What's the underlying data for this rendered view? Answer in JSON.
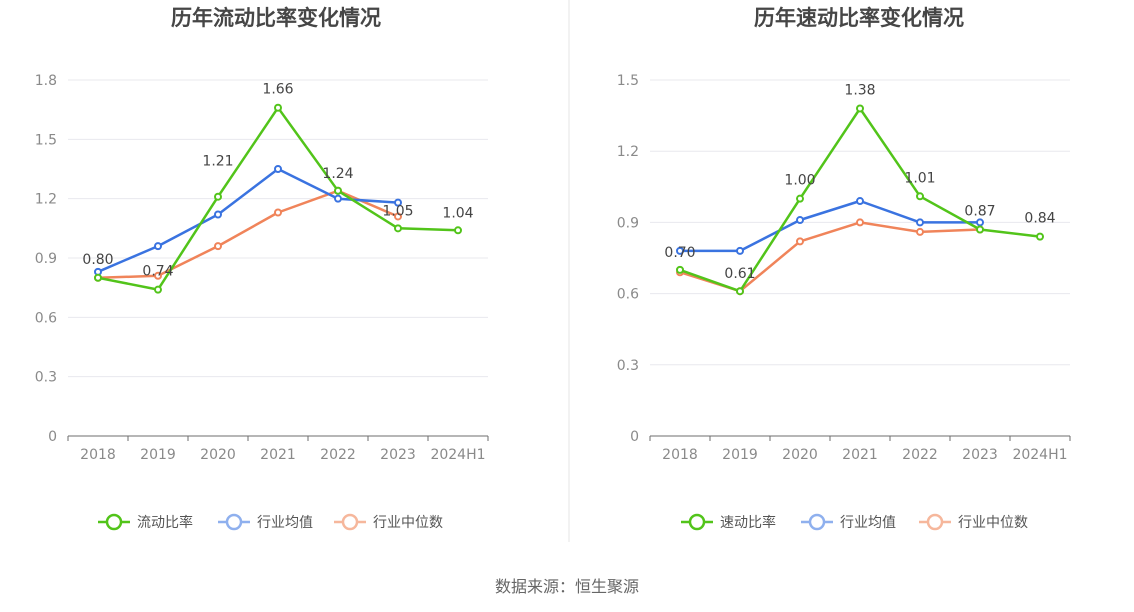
{
  "source_text": "数据来源：恒生聚源",
  "chart_data": [
    {
      "type": "line",
      "title": "历年流动比率变化情况",
      "xlabel": "",
      "ylabel": "",
      "categories": [
        "2018",
        "2019",
        "2020",
        "2021",
        "2022",
        "2023",
        "2024H1"
      ],
      "ylim": [
        0,
        1.8
      ],
      "yticks": [
        "0",
        "0.3",
        "0.6",
        "0.9",
        "1.2",
        "1.5",
        "1.8"
      ],
      "grid": true,
      "legend_position": "bottom",
      "series": [
        {
          "name": "流动比率",
          "color": "#52c41a",
          "values": [
            0.8,
            0.74,
            1.21,
            1.66,
            1.24,
            1.05,
            1.04
          ],
          "labels": [
            "0.80",
            "0.74",
            "1.21",
            "1.66",
            "1.24",
            "1.05",
            "1.04"
          ]
        },
        {
          "name": "行业均值",
          "color": "#3a73e0",
          "values": [
            0.83,
            0.96,
            1.12,
            1.35,
            1.2,
            1.18,
            null
          ]
        },
        {
          "name": "行业中位数",
          "color": "#f0845a",
          "values": [
            0.8,
            0.81,
            0.96,
            1.13,
            1.24,
            1.11,
            null
          ]
        }
      ]
    },
    {
      "type": "line",
      "title": "历年速动比率变化情况",
      "xlabel": "",
      "ylabel": "",
      "categories": [
        "2018",
        "2019",
        "2020",
        "2021",
        "2022",
        "2023",
        "2024H1"
      ],
      "ylim": [
        0,
        1.5
      ],
      "yticks": [
        "0",
        "0.3",
        "0.6",
        "0.9",
        "1.2",
        "1.5"
      ],
      "grid": true,
      "legend_position": "bottom",
      "series": [
        {
          "name": "速动比率",
          "color": "#52c41a",
          "values": [
            0.7,
            0.61,
            1.0,
            1.38,
            1.01,
            0.87,
            0.84
          ],
          "labels": [
            "0.70",
            "0.61",
            "1.00",
            "1.38",
            "1.01",
            "0.87",
            "0.84"
          ]
        },
        {
          "name": "行业均值",
          "color": "#3a73e0",
          "values": [
            0.78,
            0.78,
            0.91,
            0.99,
            0.9,
            0.9,
            null
          ]
        },
        {
          "name": "行业中位数",
          "color": "#f0845a",
          "values": [
            0.69,
            0.61,
            0.82,
            0.9,
            0.86,
            0.87,
            null
          ]
        }
      ]
    }
  ]
}
